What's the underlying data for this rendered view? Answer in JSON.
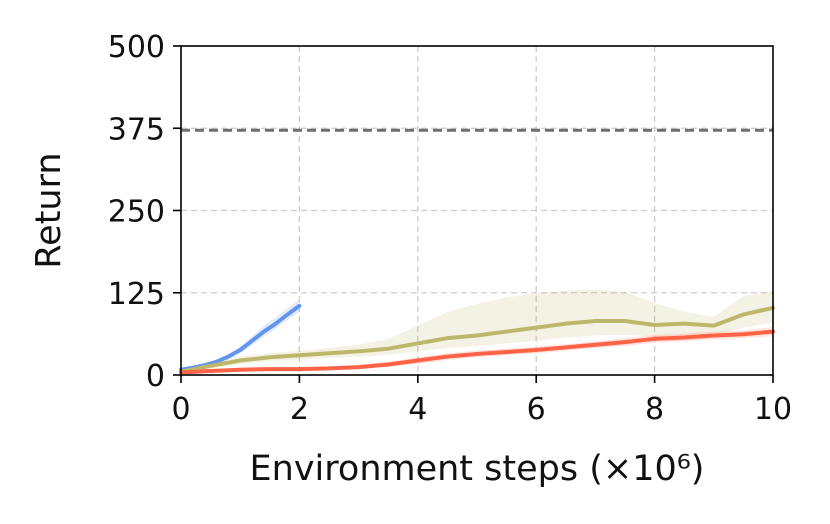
{
  "chart_data": {
    "type": "line",
    "title": "",
    "xlabel": "Environment steps (×10⁶)",
    "ylabel": "Return",
    "xlim": [
      0,
      10
    ],
    "ylim": [
      0,
      500
    ],
    "x_ticks": [
      "0",
      "2",
      "4",
      "6",
      "8",
      "10"
    ],
    "y_ticks": [
      "0",
      "125",
      "250",
      "375",
      "500"
    ],
    "grid": true,
    "legend": "none",
    "reference_line": {
      "y": 372,
      "style": "dashed",
      "color": "#6e6e6e"
    },
    "series": [
      {
        "color": "#6495ed",
        "x": [
          0,
          0.2,
          0.4,
          0.6,
          0.8,
          1.0,
          1.2,
          1.4,
          1.6,
          1.8,
          2.0
        ],
        "values": [
          8,
          11,
          15,
          20,
          28,
          38,
          52,
          66,
          78,
          92,
          105
        ],
        "band_lower": [
          6,
          9,
          12,
          17,
          24,
          33,
          45,
          58,
          70,
          84,
          96
        ],
        "band_upper": [
          10,
          13,
          18,
          23,
          32,
          43,
          59,
          75,
          88,
          102,
          115
        ]
      },
      {
        "color": "#bdb76b",
        "x": [
          0,
          0.5,
          1.0,
          1.5,
          2.0,
          2.5,
          3.0,
          3.5,
          4.0,
          4.5,
          5.0,
          5.5,
          6.0,
          6.5,
          7.0,
          7.5,
          8.0,
          8.5,
          9.0,
          9.5,
          10.0
        ],
        "values": [
          5,
          14,
          22,
          27,
          30,
          33,
          36,
          40,
          48,
          56,
          60,
          66,
          72,
          78,
          82,
          82,
          76,
          78,
          75,
          92,
          102
        ],
        "band_lower": [
          3,
          10,
          17,
          21,
          23,
          26,
          28,
          31,
          36,
          41,
          44,
          48,
          52,
          57,
          60,
          61,
          58,
          61,
          60,
          72,
          80
        ],
        "band_upper": [
          8,
          19,
          28,
          33,
          37,
          41,
          46,
          55,
          75,
          96,
          108,
          118,
          124,
          128,
          130,
          126,
          110,
          96,
          88,
          120,
          128
        ]
      },
      {
        "color": "#ff6347",
        "x": [
          0,
          0.5,
          1.0,
          1.5,
          2.0,
          2.5,
          3.0,
          3.5,
          4.0,
          4.5,
          5.0,
          5.5,
          6.0,
          6.5,
          7.0,
          7.5,
          8.0,
          8.5,
          9.0,
          9.5,
          10.0
        ],
        "values": [
          4,
          6,
          8,
          9,
          9,
          10,
          12,
          16,
          22,
          28,
          32,
          35,
          38,
          42,
          46,
          50,
          55,
          57,
          60,
          62,
          66
        ],
        "band_lower": [
          2,
          4,
          6,
          7,
          7,
          8,
          9,
          12,
          17,
          23,
          27,
          30,
          33,
          37,
          41,
          44,
          49,
          51,
          54,
          56,
          59
        ],
        "band_upper": [
          6,
          8,
          10,
          11,
          12,
          13,
          15,
          20,
          27,
          33,
          37,
          40,
          43,
          47,
          51,
          56,
          61,
          63,
          66,
          68,
          73
        ]
      }
    ]
  }
}
